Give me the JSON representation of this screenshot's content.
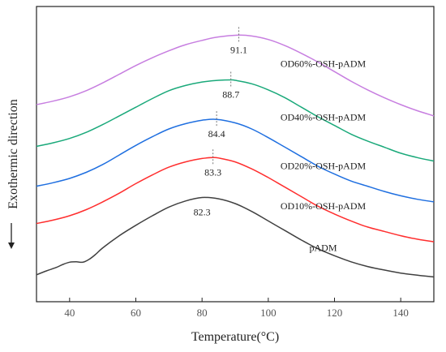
{
  "chart_data": {
    "type": "line",
    "title": "",
    "xlabel": "Temperature(°C)",
    "ylabel": "Exothermic direction",
    "ylabel_arrow": "down",
    "xlim": [
      30,
      150
    ],
    "x_ticks": [
      40,
      60,
      80,
      100,
      120,
      140
    ],
    "y_ticks_shown": false,
    "grid": false,
    "legend": "none (series labelled directly on the curves)",
    "series": [
      {
        "name": "pADM",
        "color": "#404040",
        "peak_label": "82.3",
        "peak_marker": false,
        "points": [
          [
            30,
            0.1
          ],
          [
            33,
            0.55
          ],
          [
            36,
            0.95
          ],
          [
            38,
            1.3
          ],
          [
            40,
            1.55
          ],
          [
            42,
            1.6
          ],
          [
            44,
            1.55
          ],
          [
            46,
            1.9
          ],
          [
            48,
            2.5
          ],
          [
            50,
            3.2
          ],
          [
            55,
            4.6
          ],
          [
            60,
            5.8
          ],
          [
            65,
            6.9
          ],
          [
            70,
            7.9
          ],
          [
            75,
            8.6
          ],
          [
            80,
            9.0
          ],
          [
            85,
            8.85
          ],
          [
            90,
            8.3
          ],
          [
            95,
            7.4
          ],
          [
            100,
            6.3
          ],
          [
            105,
            5.2
          ],
          [
            110,
            4.1
          ],
          [
            115,
            3.1
          ],
          [
            120,
            2.3
          ],
          [
            125,
            1.6
          ],
          [
            130,
            1.05
          ],
          [
            135,
            0.65
          ],
          [
            140,
            0.3
          ],
          [
            145,
            0.05
          ],
          [
            150,
            -0.15
          ]
        ]
      },
      {
        "name": "OD10%-OSH-pADM",
        "color": "#ff2e2e",
        "peak_label": "83.3",
        "peak_marker": true,
        "points": [
          [
            30,
            6.0
          ],
          [
            35,
            6.4
          ],
          [
            40,
            6.9
          ],
          [
            45,
            7.6
          ],
          [
            50,
            8.5
          ],
          [
            55,
            9.5
          ],
          [
            60,
            10.6
          ],
          [
            65,
            11.6
          ],
          [
            70,
            12.5
          ],
          [
            75,
            13.1
          ],
          [
            80,
            13.5
          ],
          [
            83.3,
            13.6
          ],
          [
            85,
            13.55
          ],
          [
            90,
            13.1
          ],
          [
            95,
            12.3
          ],
          [
            100,
            11.3
          ],
          [
            105,
            10.2
          ],
          [
            110,
            9.1
          ],
          [
            115,
            8.0
          ],
          [
            120,
            7.1
          ],
          [
            125,
            6.3
          ],
          [
            130,
            5.6
          ],
          [
            135,
            5.1
          ],
          [
            140,
            4.6
          ],
          [
            145,
            4.2
          ],
          [
            150,
            3.9
          ]
        ]
      },
      {
        "name": "OD20%-OSH-pADM",
        "color": "#1f6fe0",
        "peak_label": "84.4",
        "peak_marker": true,
        "points": [
          [
            30,
            10.3
          ],
          [
            35,
            10.7
          ],
          [
            40,
            11.2
          ],
          [
            45,
            11.9
          ],
          [
            50,
            12.8
          ],
          [
            55,
            13.9
          ],
          [
            60,
            15.0
          ],
          [
            65,
            16.0
          ],
          [
            70,
            16.9
          ],
          [
            75,
            17.5
          ],
          [
            80,
            17.9
          ],
          [
            84.4,
            18.0
          ],
          [
            90,
            17.6
          ],
          [
            95,
            16.9
          ],
          [
            100,
            15.9
          ],
          [
            105,
            14.8
          ],
          [
            110,
            13.7
          ],
          [
            115,
            12.6
          ],
          [
            120,
            11.7
          ],
          [
            125,
            10.9
          ],
          [
            130,
            10.3
          ],
          [
            135,
            9.7
          ],
          [
            140,
            9.2
          ],
          [
            145,
            8.8
          ],
          [
            150,
            8.5
          ]
        ]
      },
      {
        "name": "OD40%-OSH-pADM",
        "color": "#1aa97a",
        "peak_label": "88.7",
        "peak_marker": true,
        "points": [
          [
            30,
            14.9
          ],
          [
            35,
            15.3
          ],
          [
            40,
            15.8
          ],
          [
            45,
            16.5
          ],
          [
            50,
            17.4
          ],
          [
            55,
            18.4
          ],
          [
            60,
            19.4
          ],
          [
            65,
            20.4
          ],
          [
            70,
            21.3
          ],
          [
            75,
            21.9
          ],
          [
            80,
            22.3
          ],
          [
            85,
            22.5
          ],
          [
            88.7,
            22.55
          ],
          [
            90,
            22.5
          ],
          [
            95,
            22.1
          ],
          [
            100,
            21.4
          ],
          [
            105,
            20.5
          ],
          [
            110,
            19.4
          ],
          [
            115,
            18.3
          ],
          [
            120,
            17.3
          ],
          [
            125,
            16.3
          ],
          [
            130,
            15.5
          ],
          [
            135,
            14.8
          ],
          [
            140,
            14.1
          ],
          [
            145,
            13.6
          ],
          [
            150,
            13.2
          ]
        ]
      },
      {
        "name": "OD60%-OSH-pADM",
        "color": "#c77ee0",
        "peak_label": "91.1",
        "peak_marker": true,
        "points": [
          [
            30,
            19.7
          ],
          [
            35,
            20.1
          ],
          [
            40,
            20.6
          ],
          [
            45,
            21.3
          ],
          [
            50,
            22.2
          ],
          [
            55,
            23.2
          ],
          [
            60,
            24.2
          ],
          [
            65,
            25.1
          ],
          [
            70,
            25.9
          ],
          [
            75,
            26.6
          ],
          [
            80,
            27.1
          ],
          [
            85,
            27.5
          ],
          [
            91.1,
            27.7
          ],
          [
            95,
            27.6
          ],
          [
            100,
            27.2
          ],
          [
            105,
            26.5
          ],
          [
            110,
            25.6
          ],
          [
            115,
            24.6
          ],
          [
            120,
            23.5
          ],
          [
            125,
            22.4
          ],
          [
            130,
            21.4
          ],
          [
            135,
            20.5
          ],
          [
            140,
            19.7
          ],
          [
            145,
            19.0
          ],
          [
            150,
            18.4
          ]
        ]
      }
    ]
  }
}
